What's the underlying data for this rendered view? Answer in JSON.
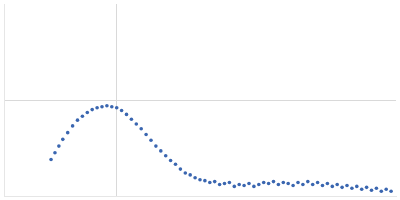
{
  "chart_data": {
    "type": "scatter",
    "color": "#3a66b0",
    "marker": "circle",
    "grid": true,
    "tick_labels": false,
    "xlim": [
      0,
      0.4
    ],
    "xticks": [
      0.115
    ],
    "ylim": [
      0,
      2
    ],
    "yticks": [
      1
    ],
    "x": [
      0.048,
      0.052,
      0.056,
      0.06,
      0.065,
      0.07,
      0.075,
      0.08,
      0.085,
      0.09,
      0.095,
      0.1,
      0.105,
      0.11,
      0.115,
      0.12,
      0.125,
      0.13,
      0.135,
      0.14,
      0.145,
      0.15,
      0.155,
      0.16,
      0.165,
      0.17,
      0.175,
      0.18,
      0.185,
      0.19,
      0.195,
      0.2,
      0.205,
      0.21,
      0.215,
      0.22,
      0.225,
      0.23,
      0.235,
      0.24,
      0.245,
      0.25,
      0.255,
      0.26,
      0.265,
      0.27,
      0.275,
      0.28,
      0.285,
      0.29,
      0.295,
      0.3,
      0.305,
      0.31,
      0.315,
      0.32,
      0.325,
      0.33,
      0.335,
      0.34,
      0.345,
      0.35,
      0.355,
      0.36,
      0.365,
      0.37,
      0.375,
      0.38,
      0.385,
      0.39,
      0.395
    ],
    "values": [
      0.38,
      0.45,
      0.52,
      0.59,
      0.66,
      0.73,
      0.79,
      0.83,
      0.87,
      0.9,
      0.92,
      0.93,
      0.94,
      0.93,
      0.92,
      0.89,
      0.85,
      0.8,
      0.75,
      0.7,
      0.64,
      0.58,
      0.52,
      0.47,
      0.42,
      0.37,
      0.33,
      0.28,
      0.24,
      0.22,
      0.19,
      0.17,
      0.16,
      0.14,
      0.15,
      0.12,
      0.13,
      0.14,
      0.1,
      0.12,
      0.11,
      0.13,
      0.1,
      0.12,
      0.14,
      0.13,
      0.15,
      0.12,
      0.14,
      0.13,
      0.11,
      0.14,
      0.12,
      0.15,
      0.12,
      0.14,
      0.11,
      0.13,
      0.1,
      0.12,
      0.09,
      0.11,
      0.08,
      0.1,
      0.07,
      0.09,
      0.06,
      0.08,
      0.05,
      0.07,
      0.05
    ]
  }
}
